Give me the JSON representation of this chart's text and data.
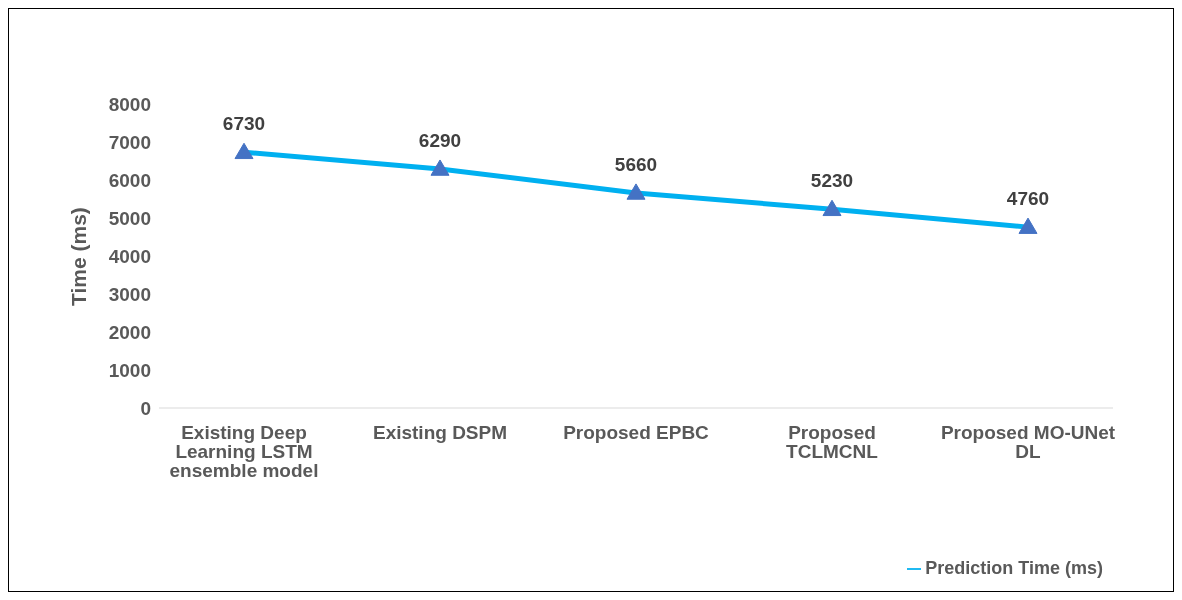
{
  "chart_data": {
    "type": "line",
    "ylabel": "Time (ms)",
    "categories": [
      "Existing Deep Learning LSTM ensemble model",
      "Existing DSPM",
      "Proposed EPBC",
      "Proposed TCLMCNL",
      "Proposed MO-UNet DL"
    ],
    "series": [
      {
        "name": "Prediction Time (ms)",
        "color": "#00b0f0",
        "values": [
          6730,
          6290,
          5660,
          5230,
          4760
        ]
      }
    ],
    "ylim": [
      0,
      8000
    ],
    "yticks": [
      0,
      1000,
      2000,
      3000,
      4000,
      5000,
      6000,
      7000,
      8000
    ],
    "grid": false,
    "legend": "bottom right",
    "marker": "triangle",
    "data_labels": true
  }
}
